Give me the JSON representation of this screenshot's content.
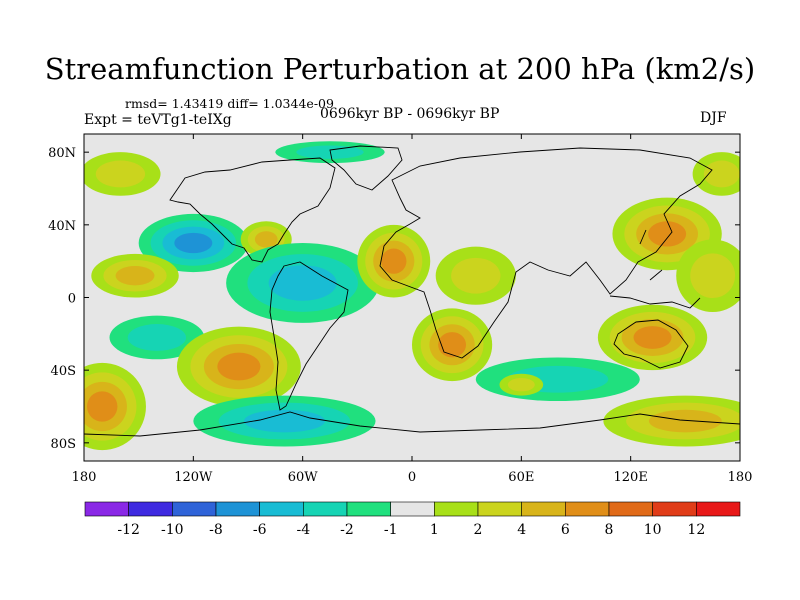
{
  "header": {
    "title": "Streamfunction Perturbation at 200 hPa (km2/s)",
    "stats": "rmsd= 1.43419 diff= 1.0344e-09",
    "experiment": "Expt = teVTg1-teIXg",
    "period": "0696kyr BP - 0696kyr BP",
    "season": "DJF"
  },
  "chart_data": {
    "type": "heatmap",
    "title": "Streamfunction Perturbation at 200 hPa (km2/s)",
    "xlabel": "",
    "ylabel": "",
    "xlim": [
      -180,
      180
    ],
    "ylim": [
      -90,
      90
    ],
    "x_ticks": [
      {
        "value": -180,
        "label": "180"
      },
      {
        "value": -120,
        "label": "120W"
      },
      {
        "value": -60,
        "label": "60W"
      },
      {
        "value": 0,
        "label": "0"
      },
      {
        "value": 60,
        "label": "60E"
      },
      {
        "value": 120,
        "label": "120E"
      },
      {
        "value": 180,
        "label": "180"
      }
    ],
    "y_ticks": [
      {
        "value": 80,
        "label": "80N"
      },
      {
        "value": 40,
        "label": "40N"
      },
      {
        "value": 0,
        "label": "0"
      },
      {
        "value": -40,
        "label": "40S"
      },
      {
        "value": -80,
        "label": "80S"
      }
    ],
    "colorbar": {
      "labels": [
        "-12",
        "-10",
        "-8",
        "-6",
        "-4",
        "-2",
        "-1",
        "1",
        "2",
        "4",
        "6",
        "8",
        "10",
        "12"
      ],
      "colors": [
        "#8a28e6",
        "#3f2ae0",
        "#2f63d8",
        "#1e93d6",
        "#19bcd4",
        "#16d4b4",
        "#20e07e",
        "#e6e6e6",
        "#a8e018",
        "#cbd41e",
        "#d8b41a",
        "#e08e18",
        "#e06a18",
        "#e03c18",
        "#e81818"
      ]
    },
    "field_anomalies": [
      {
        "lon": -160,
        "lat": 68,
        "rx": 22,
        "ry": 12,
        "value": 2
      },
      {
        "lon": 170,
        "lat": 68,
        "rx": 16,
        "ry": 12,
        "value": 2
      },
      {
        "lon": -45,
        "lat": 80,
        "rx": 30,
        "ry": 6,
        "value": -2
      },
      {
        "lon": -120,
        "lat": 30,
        "rx": 30,
        "ry": 16,
        "value": -4
      },
      {
        "lon": -80,
        "lat": 32,
        "rx": 14,
        "ry": 10,
        "value": 3
      },
      {
        "lon": -60,
        "lat": 8,
        "rx": 42,
        "ry": 22,
        "value": -3
      },
      {
        "lon": -152,
        "lat": 12,
        "rx": 24,
        "ry": 12,
        "value": 3
      },
      {
        "lon": -10,
        "lat": 20,
        "rx": 20,
        "ry": 20,
        "value": 4
      },
      {
        "lon": 35,
        "lat": 12,
        "rx": 22,
        "ry": 16,
        "value": 2
      },
      {
        "lon": 22,
        "lat": -26,
        "rx": 22,
        "ry": 20,
        "value": 4
      },
      {
        "lon": 140,
        "lat": 35,
        "rx": 30,
        "ry": 20,
        "value": 4
      },
      {
        "lon": 165,
        "lat": 12,
        "rx": 20,
        "ry": 20,
        "value": 2
      },
      {
        "lon": 132,
        "lat": -22,
        "rx": 30,
        "ry": 18,
        "value": 4
      },
      {
        "lon": -140,
        "lat": -22,
        "rx": 26,
        "ry": 12,
        "value": -2
      },
      {
        "lon": -95,
        "lat": -38,
        "rx": 34,
        "ry": 22,
        "value": 4
      },
      {
        "lon": -170,
        "lat": -60,
        "rx": 24,
        "ry": 24,
        "value": 4
      },
      {
        "lon": -70,
        "lat": -68,
        "rx": 50,
        "ry": 14,
        "value": -3
      },
      {
        "lon": 80,
        "lat": -45,
        "rx": 45,
        "ry": 12,
        "value": -2
      },
      {
        "lon": 150,
        "lat": -68,
        "rx": 45,
        "ry": 14,
        "value": 3
      },
      {
        "lon": 60,
        "lat": -48,
        "rx": 12,
        "ry": 6,
        "value": 2
      }
    ]
  }
}
